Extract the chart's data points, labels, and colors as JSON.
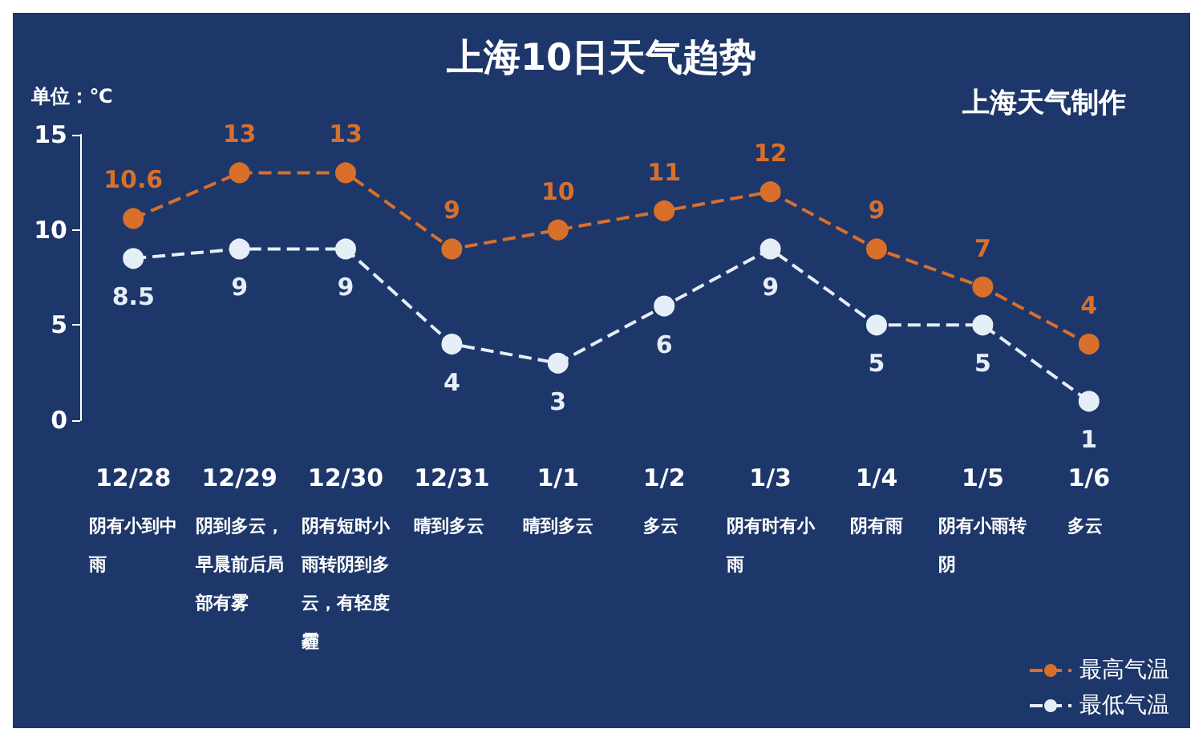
{
  "chart_data": {
    "type": "line",
    "title": "上海10日天气趋势",
    "ylabel": "单位：℃",
    "annotations": [
      "上海天气制作"
    ],
    "categories": [
      "12/28\n阴有小到中雨",
      "12/29\n阴到多云，早晨前后局部有雾",
      "12/30\n阴有短时小雨转阴到多云，有轻度霾",
      "12/31\n晴到多云",
      "1/1\n晴到多云",
      "1/2\n多云",
      "1/3\n阴有时有小雨",
      "1/4\n阴有雨",
      "1/5\n阴有小雨转阴",
      "1/6\n多云"
    ],
    "series": [
      {
        "name": "最高气温",
        "color": "#d8702c",
        "values": [
          10.6,
          13,
          13,
          9,
          10,
          11,
          12,
          9,
          7,
          4
        ]
      },
      {
        "name": "最低气温",
        "color": "#e6eef8",
        "values": [
          8.5,
          9,
          9,
          4,
          3,
          6,
          9,
          5,
          5,
          1
        ]
      }
    ],
    "ylim": [
      0,
      15
    ],
    "yticks": [
      0,
      5,
      10,
      15
    ],
    "grid": false,
    "legend": "bottom right",
    "marker": "circle",
    "line_style": "dashed",
    "data_labels": true
  }
}
